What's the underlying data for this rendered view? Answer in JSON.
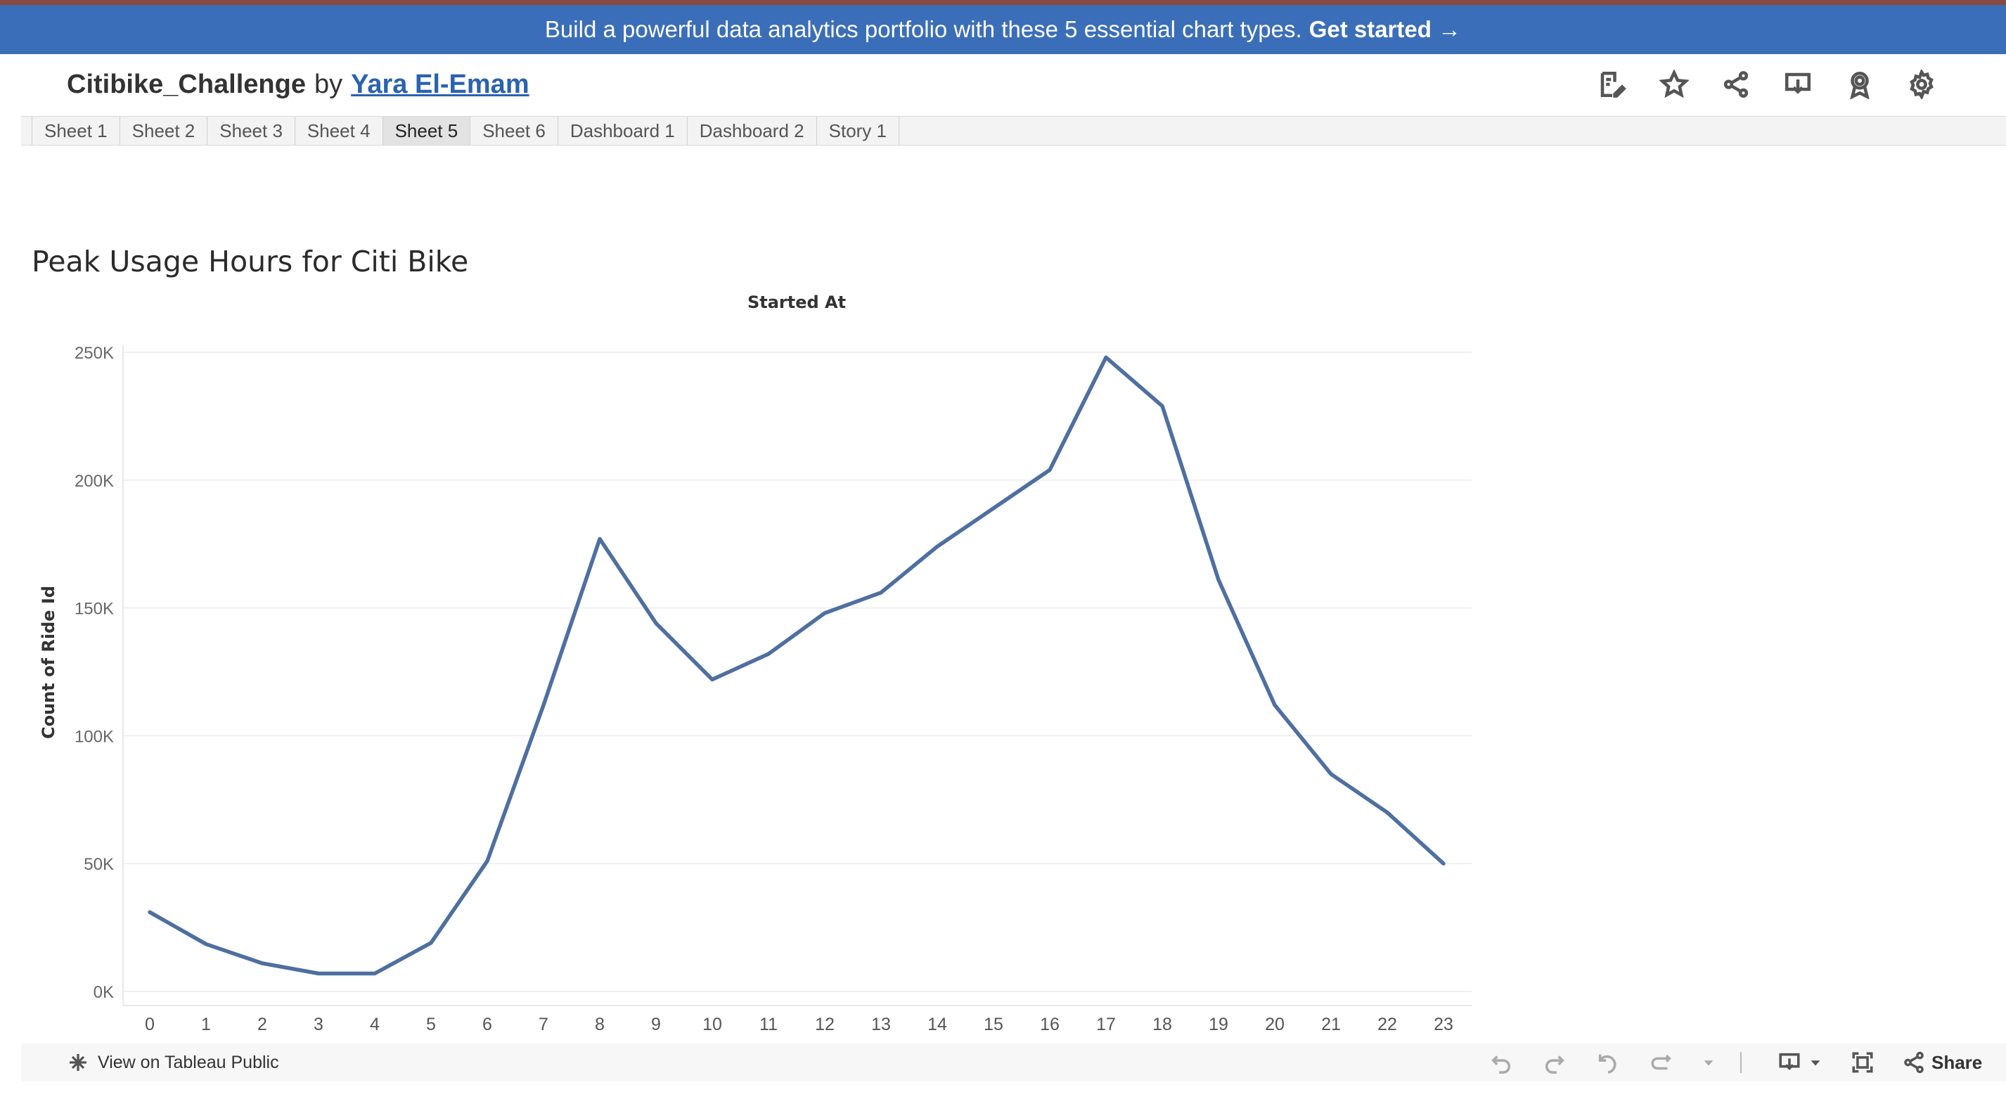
{
  "banner": {
    "text": "Build a powerful data analytics portfolio with these 5 essential chart types.",
    "cta": "Get started →"
  },
  "header": {
    "workbook_name": "Citibike_Challenge",
    "by": "by",
    "author": "Yara El-Emam",
    "icons": [
      "edit-icon",
      "star-icon",
      "share-network-icon",
      "download-icon",
      "badge-icon",
      "gear-icon"
    ]
  },
  "tabs": [
    {
      "label": "Sheet 1",
      "active": false
    },
    {
      "label": "Sheet 2",
      "active": false
    },
    {
      "label": "Sheet 3",
      "active": false
    },
    {
      "label": "Sheet 4",
      "active": false
    },
    {
      "label": "Sheet 5",
      "active": true
    },
    {
      "label": "Sheet 6",
      "active": false
    },
    {
      "label": "Dashboard 1",
      "active": false
    },
    {
      "label": "Dashboard 2",
      "active": false
    },
    {
      "label": "Story 1",
      "active": false
    }
  ],
  "sheet_title": "Peak Usage Hours for Citi Bike",
  "chart_data": {
    "type": "line",
    "title": "Peak Usage Hours for Citi Bike",
    "xlabel": "Started At",
    "ylabel": "Count of Ride Id",
    "categories": [
      "0",
      "1",
      "2",
      "3",
      "4",
      "5",
      "6",
      "7",
      "8",
      "9",
      "10",
      "11",
      "12",
      "13",
      "14",
      "15",
      "16",
      "17",
      "18",
      "19",
      "20",
      "21",
      "22",
      "23"
    ],
    "values": [
      31000,
      18500,
      11000,
      7000,
      7000,
      19000,
      51000,
      112000,
      177000,
      144000,
      122000,
      132000,
      148000,
      156000,
      174000,
      189000,
      204000,
      248000,
      229000,
      161000,
      112000,
      85000,
      70000,
      50000
    ],
    "ylim": [
      0,
      250000
    ],
    "yticks": [
      0,
      50000,
      100000,
      150000,
      200000,
      250000
    ],
    "ytick_labels": [
      "0K",
      "50K",
      "100K",
      "150K",
      "200K",
      "250K"
    ],
    "grid": true,
    "line_color": "#4e6fa0"
  },
  "bottombar": {
    "view_on": "View on Tableau Public",
    "share": "Share"
  }
}
